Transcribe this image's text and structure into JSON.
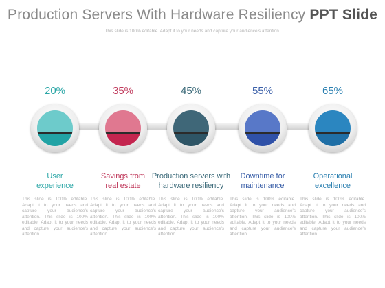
{
  "header": {
    "title_main": "Production Servers With Hardware Resiliency",
    "title_bold": "PPT Slide",
    "subtitle": "This slide is 100% editable. Adapt it to your needs and capture your audience's attention."
  },
  "steps": [
    {
      "percent": "20%",
      "label_line1": "User",
      "label_line2": "experience",
      "description": "This slide is 100% editable. Adapt it to your needs and capture your audience's attention. This slide is 100% editable. Adapt it to your needs and capture your audience's attention.",
      "color_text": "#2aa6a6",
      "color_top": "#6dcbcb",
      "color_bottom": "#21a3a5"
    },
    {
      "percent": "35%",
      "label_line1": "Savings from",
      "label_line2": "real estate",
      "description": "This slide is 100% editable. Adapt it to your needs and capture your audience's attention. This slide is 100% editable. Adapt it to your needs and capture your audience's attention.",
      "color_text": "#c03a5c",
      "color_top": "#e07890",
      "color_bottom": "#c4254f"
    },
    {
      "percent": "45%",
      "label_line1": "Production servers with",
      "label_line2": "hardware resiliency",
      "description": "This slide is 100% editable. Adapt it to your needs and capture your audience's attention. This slide is 100% editable. Adapt it to your needs and capture your audience's attention.",
      "color_text": "#3d6b7a",
      "color_top": "#3f6778",
      "color_bottom": "#2e5566"
    },
    {
      "percent": "55%",
      "label_line1": "Downtime for",
      "label_line2": "maintenance",
      "description": "This slide is 100% editable. Adapt it to your needs and capture your audience's attention. This slide is 100% editable. Adapt it to your needs and capture your audience's attention.",
      "color_text": "#3a5fa8",
      "color_top": "#5878c8",
      "color_bottom": "#2f51a8"
    },
    {
      "percent": "65%",
      "label_line1": "Operational",
      "label_line2": "excellence",
      "description": "This slide is 100% editable. Adapt it to your needs and capture your audience's attention. This slide is 100% editable. Adapt it to your needs and capture your audience's attention.",
      "color_text": "#2a7fb0",
      "color_top": "#2b86c0",
      "color_bottom": "#1f6fa6"
    }
  ]
}
